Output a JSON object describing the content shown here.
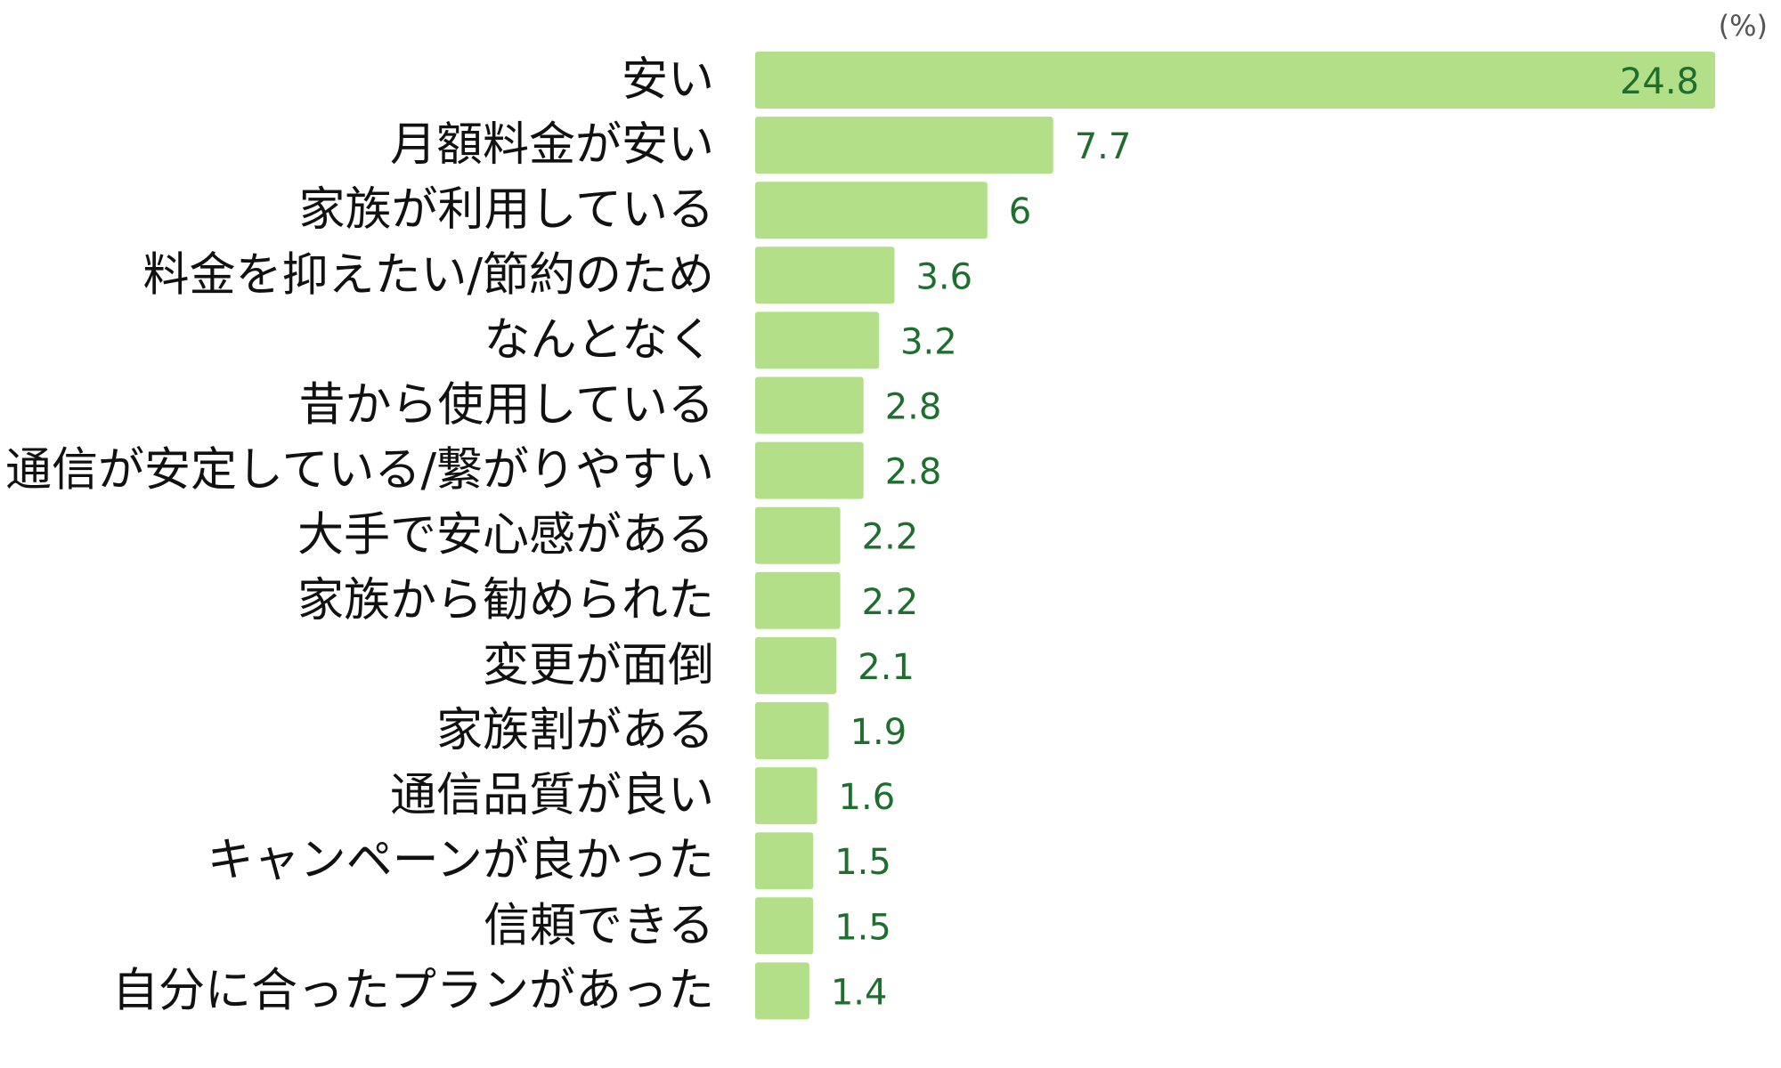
{
  "chart_data": {
    "type": "bar",
    "orientation": "horizontal",
    "unit": "(%)",
    "categories": [
      "安い",
      "月額料金が安い",
      "家族が利用している",
      "料金を抑えたい/節約のため",
      "なんとなく",
      "昔から使用している",
      "通信が安定している/繋がりやすい",
      "大手で安心感がある",
      "家族から勧められた",
      "変更が面倒",
      "家族割がある",
      "通信品質が良い",
      "キャンペーンが良かった",
      "信頼できる",
      "自分に合ったプランがあった"
    ],
    "values": [
      24.8,
      7.7,
      6,
      3.6,
      3.2,
      2.8,
      2.8,
      2.2,
      2.2,
      2.1,
      1.9,
      1.6,
      1.5,
      1.5,
      1.4
    ],
    "value_labels": [
      "24.8",
      "7.7",
      "6",
      "3.6",
      "3.2",
      "2.8",
      "2.8",
      "2.2",
      "2.2",
      "2.1",
      "1.9",
      "1.6",
      "1.5",
      "1.5",
      "1.4"
    ],
    "xlim": [
      0,
      24.8
    ],
    "grid": false,
    "legend": "none",
    "colors": {
      "bar": "#b3df88",
      "value_text": "#1e6e2e",
      "category_text": "#111111",
      "unit_text": "#555555"
    }
  }
}
